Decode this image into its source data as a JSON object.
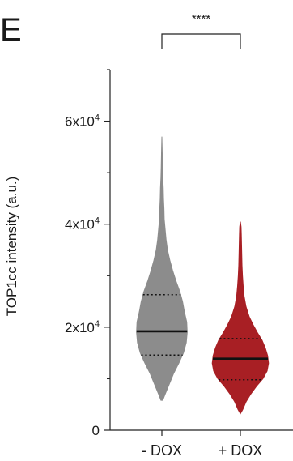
{
  "panel_label": "E",
  "chart_data": {
    "type": "violin",
    "ylabel": "TOP1cc intensity (a.u.)",
    "ylim": [
      0,
      70000
    ],
    "yticks": [
      {
        "value": 0,
        "label": "0",
        "exp": ""
      },
      {
        "value": 20000,
        "label": "2x10",
        "exp": "4"
      },
      {
        "value": 40000,
        "label": "4x10",
        "exp": "4"
      },
      {
        "value": 60000,
        "label": "6x10",
        "exp": "4"
      }
    ],
    "categories": [
      "- DOX",
      "+ DOX"
    ],
    "series": [
      {
        "name": "- DOX",
        "color": "#8c8c8c",
        "median": 19200,
        "q1": 14600,
        "q3": 26300,
        "min": 5800,
        "max": 57000,
        "density": [
          [
            5800,
            0.02
          ],
          [
            7000,
            0.07
          ],
          [
            9000,
            0.16
          ],
          [
            11000,
            0.25
          ],
          [
            13000,
            0.36
          ],
          [
            15000,
            0.46
          ],
          [
            17000,
            0.52
          ],
          [
            19000,
            0.54
          ],
          [
            21000,
            0.53
          ],
          [
            23000,
            0.48
          ],
          [
            25000,
            0.44
          ],
          [
            27000,
            0.38
          ],
          [
            29000,
            0.3
          ],
          [
            31000,
            0.23
          ],
          [
            33000,
            0.17
          ],
          [
            35000,
            0.12
          ],
          [
            37000,
            0.09
          ],
          [
            39000,
            0.07
          ],
          [
            41000,
            0.05
          ],
          [
            43000,
            0.045
          ],
          [
            45000,
            0.035
          ],
          [
            47000,
            0.03
          ],
          [
            49000,
            0.02
          ],
          [
            51000,
            0.014
          ],
          [
            54000,
            0.008
          ],
          [
            57000,
            0.0
          ]
        ]
      },
      {
        "name": "+ DOX",
        "color": "#a81f24",
        "median": 13900,
        "q1": 9800,
        "q3": 17800,
        "min": 3200,
        "max": 40500,
        "density": [
          [
            3200,
            0.0
          ],
          [
            4000,
            0.05
          ],
          [
            5500,
            0.12
          ],
          [
            7000,
            0.22
          ],
          [
            8500,
            0.34
          ],
          [
            10000,
            0.48
          ],
          [
            11500,
            0.57
          ],
          [
            13000,
            0.6
          ],
          [
            14500,
            0.58
          ],
          [
            16000,
            0.53
          ],
          [
            17500,
            0.46
          ],
          [
            19000,
            0.36
          ],
          [
            20500,
            0.27
          ],
          [
            22000,
            0.19
          ],
          [
            24000,
            0.12
          ],
          [
            26000,
            0.08
          ],
          [
            28000,
            0.06
          ],
          [
            30000,
            0.045
          ],
          [
            32000,
            0.035
          ],
          [
            34000,
            0.03
          ],
          [
            36000,
            0.025
          ],
          [
            38000,
            0.02
          ],
          [
            39500,
            0.015
          ],
          [
            40500,
            0.0
          ]
        ]
      }
    ],
    "significance": {
      "label": "****",
      "between": [
        "- DOX",
        "+ DOX"
      ]
    }
  }
}
